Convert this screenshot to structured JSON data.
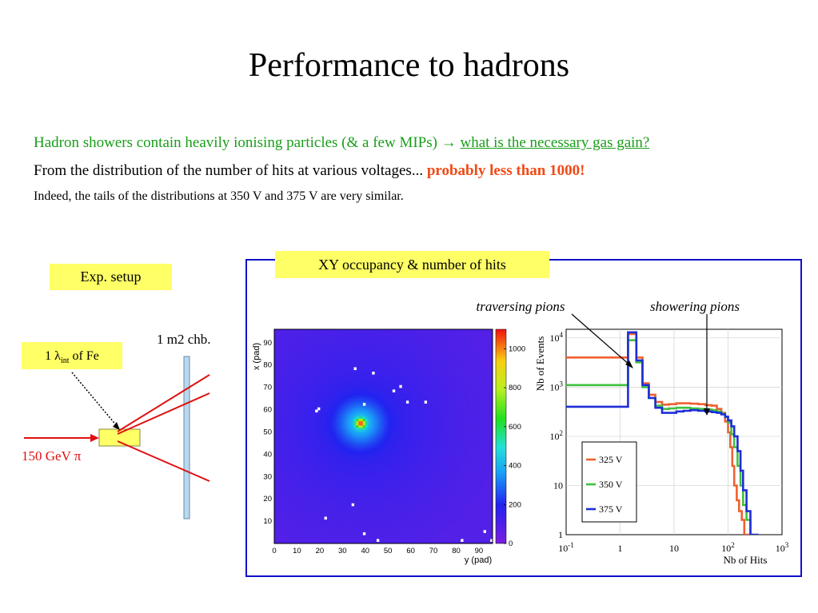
{
  "slide": {
    "title": "Performance to hadrons",
    "line1": {
      "text": "Hadron showers contain heavily ionising particles (& a few MIPs) → ",
      "link": "what is the necessary gas gain?"
    },
    "line2": {
      "text": "From the distribution of the number of hits at various voltages... ",
      "highlight": "probably less than 1000!"
    },
    "line3": "Indeed, the tails of the distributions at 350 V and 375 V are very similar.",
    "exp_setup_label": "Exp. setup",
    "xy_label": "XY occupancy & number of hits"
  },
  "setup": {
    "chamber_label": "1 m2 chb.",
    "absorber_label_prefix": "1 λ",
    "absorber_label_sub": "int",
    "absorber_label_suffix": " of Fe",
    "beam_label": "150 GeV π",
    "colors": {
      "beam": "#e01010",
      "absorber": "#ffff66",
      "chamber": "#b8d8ee"
    }
  },
  "annotations": {
    "traversing": "traversing pions",
    "showering": "showering pions"
  },
  "chart_data": [
    {
      "type": "heatmap",
      "xlabel": "y (pad)",
      "ylabel": "x (pad)",
      "x_ticks": [
        "0",
        "10",
        "20",
        "30",
        "40",
        "50",
        "60",
        "70",
        "80",
        "90"
      ],
      "y_ticks": [
        "10",
        "20",
        "30",
        "40",
        "50",
        "60",
        "70",
        "80",
        "90"
      ],
      "xlim": [
        0,
        96
      ],
      "ylim": [
        0,
        96
      ],
      "zlim": [
        0,
        1100
      ],
      "z_ticks": [
        "0",
        "200",
        "400",
        "600",
        "800",
        "1000"
      ],
      "peak": {
        "y_pad": 38,
        "x_pad": 54,
        "value": 1100
      },
      "background_level": 90,
      "hot_pads": [
        [
          35,
          78
        ],
        [
          43,
          76
        ],
        [
          52,
          68
        ],
        [
          55,
          70
        ],
        [
          58,
          63
        ],
        [
          66,
          63
        ],
        [
          39,
          62
        ],
        [
          18,
          59
        ],
        [
          19,
          60
        ],
        [
          34,
          17
        ],
        [
          22,
          11
        ],
        [
          39,
          4
        ],
        [
          45,
          1
        ],
        [
          82,
          1
        ],
        [
          92,
          5
        ],
        [
          95,
          1
        ]
      ]
    },
    {
      "type": "line",
      "xlabel": "Nb of Hits",
      "ylabel": "Nb of Events",
      "xscale": "log",
      "yscale": "log",
      "xlim": [
        0.1,
        1000
      ],
      "ylim": [
        1,
        15000
      ],
      "x_ticks": [
        "10-1",
        "1",
        "10",
        "102",
        "103"
      ],
      "y_ticks": [
        "1",
        "10",
        "102",
        "103",
        "104"
      ],
      "legend": "bottom-left",
      "series": [
        {
          "name": "325 V",
          "color": "#f06030",
          "x": [
            0.1,
            1,
            1.4,
            2,
            2.6,
            3.4,
            4.5,
            6,
            8,
            11,
            15,
            20,
            28,
            38,
            50,
            62,
            75,
            88,
            100,
            110,
            120,
            130,
            145,
            160,
            180,
            200,
            230
          ],
          "y": [
            4000,
            4000,
            12000,
            4000,
            1200,
            700,
            500,
            440,
            450,
            470,
            470,
            460,
            450,
            430,
            420,
            360,
            300,
            200,
            120,
            60,
            25,
            10,
            5,
            3,
            2,
            1,
            1
          ]
        },
        {
          "name": "350 V",
          "color": "#40c040",
          "x": [
            0.1,
            1,
            1.4,
            2,
            2.6,
            3.4,
            4.5,
            6,
            8,
            11,
            15,
            20,
            28,
            38,
            50,
            62,
            75,
            88,
            100,
            115,
            130,
            150,
            170,
            190,
            220,
            260
          ],
          "y": [
            1100,
            1100,
            9000,
            3200,
            1000,
            600,
            420,
            360,
            370,
            380,
            380,
            370,
            360,
            350,
            340,
            320,
            290,
            250,
            190,
            110,
            60,
            25,
            10,
            4,
            2,
            1
          ]
        },
        {
          "name": "375 V",
          "color": "#1e2ed6",
          "x": [
            0.1,
            1,
            1.4,
            2,
            2.6,
            3.4,
            4.5,
            6,
            8,
            11,
            15,
            20,
            28,
            38,
            50,
            62,
            75,
            88,
            100,
            115,
            130,
            150,
            170,
            190,
            220,
            260,
            320
          ],
          "y": [
            400,
            400,
            13000,
            3500,
            1100,
            600,
            380,
            300,
            300,
            320,
            330,
            340,
            330,
            320,
            310,
            300,
            280,
            250,
            210,
            160,
            100,
            50,
            20,
            8,
            3,
            1,
            1
          ]
        }
      ]
    }
  ]
}
